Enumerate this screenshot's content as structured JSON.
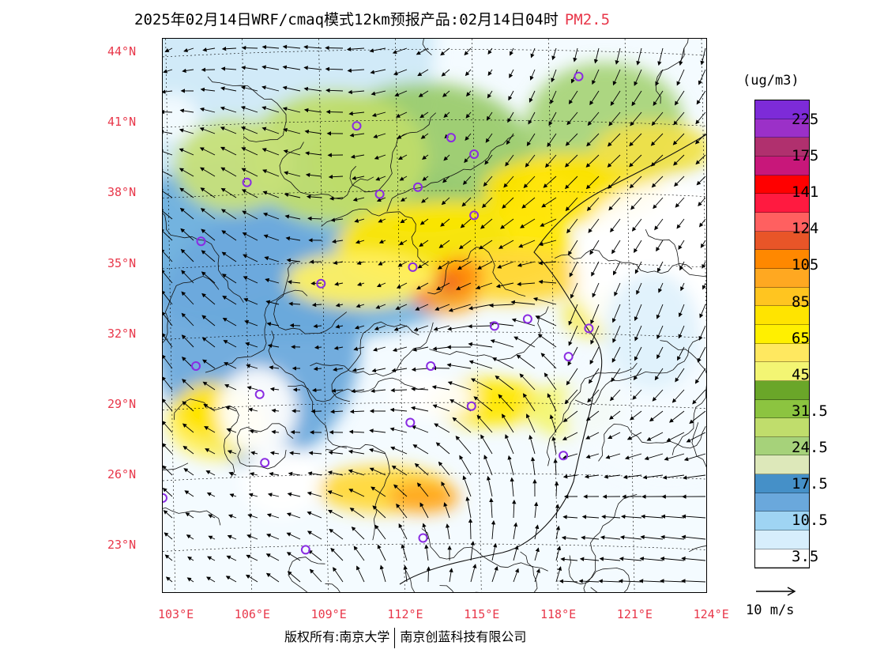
{
  "title": {
    "main": "2025年02月14日WRF/cmaq模式12km预报产品:02月14日04时",
    "product": "PM2.5",
    "product_color": "#e8374a"
  },
  "map": {
    "lat_labels": [
      "44°N",
      "41°N",
      "38°N",
      "35°N",
      "32°N",
      "29°N",
      "26°N",
      "23°N"
    ],
    "lon_labels": [
      "103°E",
      "106°E",
      "109°E",
      "112°E",
      "115°E",
      "118°E",
      "121°E",
      "124°E"
    ],
    "lat_range": [
      21.0,
      44.5
    ],
    "lon_range": [
      102.7,
      124.0
    ],
    "field_regions": [
      {
        "name": "north-china-plain",
        "level": "45-85",
        "color": "#ffe100"
      },
      {
        "name": "central-hotspot",
        "level": "105-141",
        "color": "#e8374a"
      },
      {
        "name": "sichuan-basin",
        "level": "45-65",
        "color": "#ffe100"
      },
      {
        "name": "southeast-coast",
        "level": "31.5-65",
        "color": "#ffe100"
      },
      {
        "name": "yellow-sea",
        "level": "0-3.5",
        "color": "#ffffff"
      }
    ],
    "stations": [
      {
        "lon": 119.0,
        "lat": 42.9
      },
      {
        "lon": 110.3,
        "lat": 40.8
      },
      {
        "lon": 114.0,
        "lat": 40.3
      },
      {
        "lon": 114.9,
        "lat": 39.6
      },
      {
        "lon": 106.0,
        "lat": 38.4
      },
      {
        "lon": 111.2,
        "lat": 37.9
      },
      {
        "lon": 112.7,
        "lat": 38.2
      },
      {
        "lon": 114.9,
        "lat": 37.0
      },
      {
        "lon": 104.2,
        "lat": 35.9
      },
      {
        "lon": 112.5,
        "lat": 34.8
      },
      {
        "lon": 108.9,
        "lat": 34.1
      },
      {
        "lon": 117.0,
        "lat": 32.6
      },
      {
        "lon": 115.7,
        "lat": 32.3
      },
      {
        "lon": 119.4,
        "lat": 32.2
      },
      {
        "lon": 118.6,
        "lat": 31.0
      },
      {
        "lon": 104.0,
        "lat": 30.6
      },
      {
        "lon": 113.2,
        "lat": 30.6
      },
      {
        "lon": 106.5,
        "lat": 29.4
      },
      {
        "lon": 114.8,
        "lat": 28.9
      },
      {
        "lon": 112.4,
        "lat": 28.2
      },
      {
        "lon": 106.7,
        "lat": 26.5
      },
      {
        "lon": 118.4,
        "lat": 26.8
      },
      {
        "lon": 102.7,
        "lat": 25.0
      },
      {
        "lon": 112.9,
        "lat": 23.3
      },
      {
        "lon": 108.3,
        "lat": 22.8
      }
    ]
  },
  "colorbar": {
    "unit": "(ug/m3)",
    "colors": [
      "#7d2bd8",
      "#9b30c8",
      "#b0306e",
      "#c8177a",
      "#ff0000",
      "#ff1a40",
      "#ff6060",
      "#e85528",
      "#ff8800",
      "#ffa821",
      "#ffc520",
      "#ffe400",
      "#fff000",
      "#ffe860",
      "#f3f573",
      "#6aa629",
      "#8cc440",
      "#c0dd6c",
      "#a6d27a",
      "#dde8ba",
      "#4590c8",
      "#6aa8dc",
      "#9fd4f3",
      "#d7eefc",
      "#ffffff"
    ],
    "labels": [
      "225",
      "175",
      "141",
      "124",
      "105",
      "85",
      "65",
      "45",
      "31.5",
      "24.5",
      "17.5",
      "10.5",
      "3.5"
    ]
  },
  "vector_key": {
    "label": "10 m/s"
  },
  "footer": {
    "left": "版权所有:南京大学",
    "right": "南京创蓝科技有限公司"
  }
}
